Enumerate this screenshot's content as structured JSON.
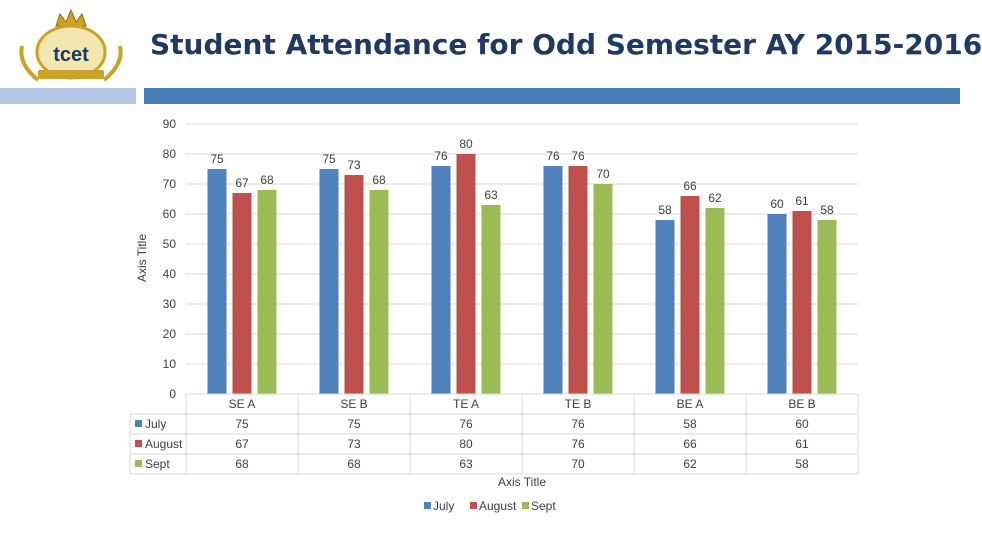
{
  "slide": {
    "title": "Student Attendance for Odd Semester AY 2015-2016",
    "logo_text": "tcet",
    "logo_icon": "tcet-crest-logo"
  },
  "colors": {
    "title": "#1f3864",
    "band_light": "#b4c7e7",
    "band_dark": "#4a7ebb",
    "grid": "#d9d9d9",
    "text": "#404040"
  },
  "chart_data": {
    "type": "bar",
    "title": "",
    "xlabel": "Axis Title",
    "ylabel": "Axis Title",
    "ylim": [
      0,
      90
    ],
    "yticks": [
      0,
      10,
      20,
      30,
      40,
      50,
      60,
      70,
      80,
      90
    ],
    "categories": [
      "SE A",
      "SE B",
      "TE A",
      "TE B",
      "BE A",
      "BE B"
    ],
    "series": [
      {
        "name": "July",
        "color": "#4f81bd",
        "values": [
          75,
          75,
          76,
          76,
          58,
          60
        ]
      },
      {
        "name": "August",
        "color": "#c0504d",
        "values": [
          67,
          73,
          80,
          76,
          66,
          61
        ]
      },
      {
        "name": "Sept",
        "color": "#9bbb59",
        "values": [
          68,
          68,
          63,
          70,
          62,
          58
        ]
      }
    ],
    "legend": "bottom",
    "data_table": true,
    "grid": true
  }
}
